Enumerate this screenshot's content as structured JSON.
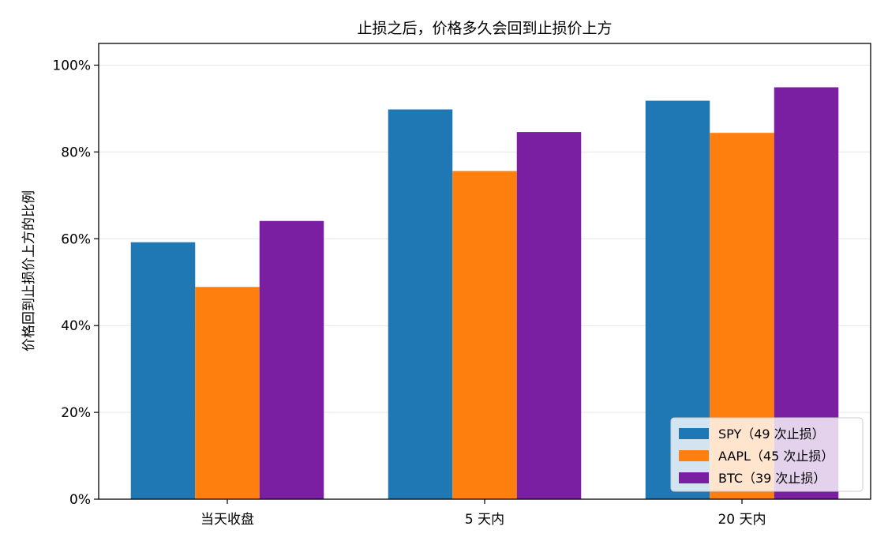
{
  "chart_data": {
    "type": "bar",
    "title": "止损之后，价格多久会回到止损价上方",
    "xlabel": "",
    "ylabel": "价格回到止损价上方的比例",
    "categories": [
      "当天收盘",
      "5 天内",
      "20 天内"
    ],
    "ylim": [
      0,
      1.05
    ],
    "yticks": [
      0,
      0.2,
      0.4,
      0.6,
      0.8,
      1.0
    ],
    "ytick_labels": [
      "0%",
      "20%",
      "40%",
      "60%",
      "80%",
      "100%"
    ],
    "grid": "horizontal",
    "legend_position": "lower right",
    "series": [
      {
        "name": "SPY（49 次止损）",
        "color": "#1f77b4",
        "values": [
          0.592,
          0.898,
          0.918
        ]
      },
      {
        "name": "AAPL（45 次止损）",
        "color": "#ff7f0e",
        "values": [
          0.489,
          0.756,
          0.844
        ]
      },
      {
        "name": "BTC（39 次止损）",
        "color": "#7b1fa2",
        "values": [
          0.641,
          0.846,
          0.949
        ]
      }
    ]
  }
}
